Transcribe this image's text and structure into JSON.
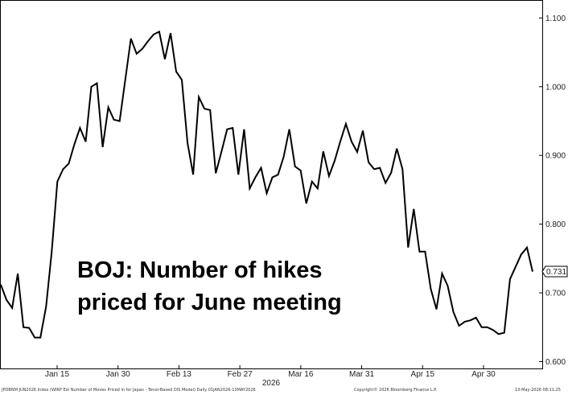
{
  "chart_data": {
    "type": "line",
    "title": "BOJ: Number of hikes priced for June meeting",
    "title_lines": [
      "BOJ: Number of hikes",
      "priced for June meeting"
    ],
    "xlabel": "2026",
    "ylabel": "",
    "x_ticks": [
      "Jan 15",
      "Jan 30",
      "Feb 13",
      "Feb 27",
      "Mar 16",
      "Mar 31",
      "Apr 15",
      "Apr 30"
    ],
    "y_ticks": [
      "0.600",
      "0.700",
      "0.800",
      "0.900",
      "1.000",
      "1.100"
    ],
    "ylim": [
      0.59,
      1.125
    ],
    "last_value_label": "0.731",
    "grid": false,
    "series": [
      {
        "values": [
          0.712,
          0.69,
          0.678,
          0.728,
          0.65,
          0.649,
          0.635,
          0.635,
          0.68,
          0.76,
          0.862,
          0.88,
          0.888,
          0.916,
          0.94,
          0.92,
          1.0,
          1.005,
          0.912,
          0.97,
          0.952,
          0.95,
          1.01,
          1.07,
          1.048,
          1.055,
          1.066,
          1.076,
          1.08,
          1.04,
          1.078,
          1.022,
          1.01,
          0.918,
          0.872,
          0.985,
          0.968,
          0.966,
          0.874,
          0.905,
          0.938,
          0.94,
          0.872,
          0.938,
          0.852,
          0.868,
          0.882,
          0.845,
          0.868,
          0.872,
          0.898,
          0.938,
          0.884,
          0.878,
          0.83,
          0.862,
          0.852,
          0.906,
          0.87,
          0.892,
          0.92,
          0.946,
          0.92,
          0.905,
          0.936,
          0.89,
          0.88,
          0.882,
          0.86,
          0.875,
          0.91,
          0.88,
          0.766,
          0.822,
          0.76,
          0.76,
          0.706,
          0.676,
          0.728,
          0.71,
          0.672,
          0.652,
          0.658,
          0.66,
          0.664,
          0.65,
          0.65,
          0.646,
          0.64,
          0.642,
          0.72,
          0.738,
          0.756,
          0.766,
          0.731
        ]
      }
    ]
  },
  "footer": {
    "left": "JPOBNM JUN2026 Index (WIRP Est Number of Moves Priced in for Japan - Tenor-Based OIS Model) Daily 01JAN2026-13MAY2026",
    "mid": "Copyright© 2026 Bloomberg Finance L.P.",
    "right": "13-May-2026 08:11:25"
  },
  "colors": {
    "line": "#000000",
    "frame": "#000000",
    "background": "#ffffff"
  }
}
